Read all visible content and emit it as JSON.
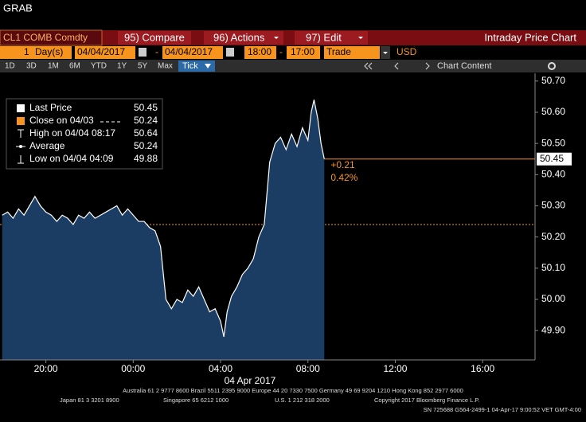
{
  "window": {
    "title": "GRAB"
  },
  "toolbar": {
    "security": "CL1 COMB Comdty",
    "buttons": [
      "95) Compare",
      "96) Actions",
      "97) Edit"
    ],
    "function": "Intraday Price Chart"
  },
  "params": {
    "period_count": "1",
    "period_unit": "Day(s)",
    "start_date": "04/04/2017",
    "end_date": "04/04/2017",
    "separator": "-",
    "start_time": "18:00",
    "end_time": "17:00",
    "field": "Trade",
    "currency": "USD"
  },
  "ranges": [
    "1D",
    "3D",
    "1M",
    "6M",
    "YTD",
    "1Y",
    "5Y",
    "Max"
  ],
  "selected_range": "Tick",
  "chart_content": "Chart Content",
  "footer": {
    "line1": "Australia 61 2 9777 8600 Brazil 5511 2395 9000 Europe 44 20 7330 7500 Germany 49 69 9204 1210 Hong Kong 852 2977 6000",
    "line2": [
      "Japan 81 3 3201 8900",
      "Singapore 65 6212 1000",
      "U.S. 1 212 318 2000",
      "Copyright 2017 Bloomberg Finance L.P."
    ],
    "line3": "SN 725688 G564-2499-1 04-Apr-17  9:00:52 VET  GMT-4:00"
  },
  "chart_data": {
    "type": "line",
    "x": [
      -6.0,
      -5.75,
      -5.5,
      -5.25,
      -5.0,
      -4.75,
      -4.5,
      -4.25,
      -4.0,
      -3.75,
      -3.5,
      -3.25,
      -3.0,
      -2.75,
      -2.5,
      -2.25,
      -2.0,
      -1.75,
      -1.5,
      -1.25,
      -1.0,
      -0.75,
      -0.5,
      -0.25,
      0.0,
      0.25,
      0.5,
      0.75,
      1.0,
      1.25,
      1.5,
      1.75,
      2.0,
      2.25,
      2.5,
      2.75,
      3.0,
      3.25,
      3.5,
      3.75,
      4.0,
      4.15,
      4.3,
      4.5,
      4.75,
      5.0,
      5.25,
      5.5,
      5.75,
      6.0,
      6.25,
      6.5,
      6.75,
      7.0,
      7.25,
      7.5,
      7.75,
      8.0,
      8.15,
      8.28,
      8.45,
      8.6,
      8.75
    ],
    "series": [
      {
        "name": "Last Price",
        "color": "#ffffff",
        "fill": "#1c3d63",
        "values": [
          50.27,
          50.28,
          50.26,
          50.29,
          50.27,
          50.3,
          50.33,
          50.3,
          50.28,
          50.27,
          50.25,
          50.27,
          50.26,
          50.24,
          50.27,
          50.26,
          50.28,
          50.26,
          50.27,
          50.28,
          50.29,
          50.3,
          50.27,
          50.29,
          50.27,
          50.25,
          50.25,
          50.23,
          50.22,
          50.17,
          50.0,
          49.97,
          50.0,
          49.99,
          50.03,
          50.01,
          50.04,
          50.0,
          49.96,
          49.97,
          49.93,
          49.88,
          49.96,
          50.01,
          50.04,
          50.08,
          50.1,
          50.13,
          50.2,
          50.24,
          50.44,
          50.5,
          50.52,
          50.48,
          50.53,
          50.49,
          50.55,
          50.51,
          50.6,
          50.64,
          50.58,
          50.5,
          50.45
        ]
      }
    ],
    "xlim": [
      -6.1,
      18.4
    ],
    "xticks": [
      {
        "value": -4,
        "label": "20:00"
      },
      {
        "value": 0,
        "label": "00:00"
      },
      {
        "value": 4,
        "label": "04:00"
      },
      {
        "value": 8,
        "label": "08:00"
      },
      {
        "value": 12,
        "label": "12:00"
      },
      {
        "value": 16,
        "label": "16:00"
      }
    ],
    "x_sublabel": "04 Apr 2017",
    "ylim": [
      49.806,
      50.725
    ],
    "yticks": [
      {
        "value": 50.7,
        "label": "50.70"
      },
      {
        "value": 50.6,
        "label": "50.60"
      },
      {
        "value": 50.5,
        "label": "50.50"
      },
      {
        "value": 50.4,
        "label": "50.40"
      },
      {
        "value": 50.3,
        "label": "50.30"
      },
      {
        "value": 50.2,
        "label": "50.20"
      },
      {
        "value": 50.1,
        "label": "50.10"
      },
      {
        "value": 50.0,
        "label": "50.00"
      },
      {
        "value": 49.9,
        "label": "49.90"
      }
    ],
    "reference_color": "#f7941d",
    "stats": {
      "last": 50.45,
      "close": 50.24,
      "high": 50.64,
      "average": 50.24,
      "low": 49.88
    },
    "stat_labels": {
      "last": "Last Price",
      "close": "Close on 04/03",
      "high": "High on 04/04 08:17",
      "average": "Average",
      "low": "Low on 04/04 04:09"
    },
    "change": "+0.21",
    "change_pct": "0.42%"
  }
}
